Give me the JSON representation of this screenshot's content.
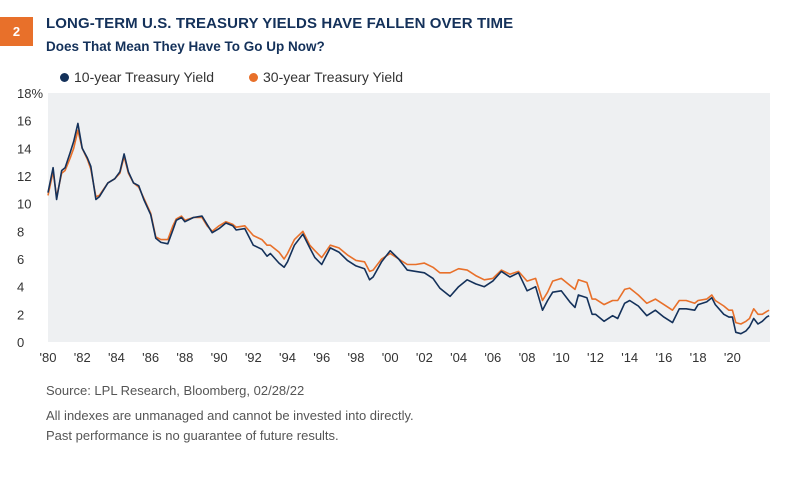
{
  "badge": "2",
  "title": "LONG-TERM U.S. TREASURY YIELDS HAVE FALLEN OVER TIME",
  "subtitle": "Does That Mean They Have To Go Up Now?",
  "footer": {
    "source": "Source: LPL Research, Bloomberg,  02/28/22",
    "disclaimer1": "All indexes are unmanaged and cannot be invested into directly.",
    "disclaimer2": "Past performance is no guarantee of future results."
  },
  "colors": {
    "navy": "#14315A",
    "orange": "#E8702A",
    "plot_bg": "#EEF0F2",
    "badge": "#E8702A"
  },
  "chart_data": {
    "type": "line",
    "title": "LONG-TERM U.S. TREASURY YIELDS HAVE FALLEN OVER TIME",
    "subtitle": "Does That Mean They Have To Go Up Now?",
    "xlabel": "",
    "ylabel": "",
    "xlim": [
      1980,
      2022.2
    ],
    "ylim": [
      0,
      18
    ],
    "y_ticks": [
      0,
      2,
      4,
      6,
      8,
      10,
      12,
      14,
      16,
      18
    ],
    "y_tick_labels": [
      "0",
      "2",
      "4",
      "6",
      "8",
      "10",
      "12",
      "14",
      "16",
      "18%"
    ],
    "x_ticks": [
      1980,
      1982,
      1984,
      1986,
      1988,
      1990,
      1992,
      1994,
      1996,
      1998,
      2000,
      2002,
      2004,
      2006,
      2008,
      2010,
      2012,
      2014,
      2016,
      2018,
      2020
    ],
    "x_tick_labels": [
      "'80",
      "'82",
      "'84",
      "'86",
      "'88",
      "'90",
      "'92",
      "'94",
      "'96",
      "'98",
      "'00",
      "'02",
      "'04",
      "'06",
      "'08",
      "'10",
      "'12",
      "'14",
      "'16",
      "'18",
      "'20"
    ],
    "grid": false,
    "legend_position": "top-left",
    "series": [
      {
        "name": "10-year Treasury Yield",
        "color": "#14315A",
        "x": [
          1980.0,
          1980.3,
          1980.5,
          1980.8,
          1981.0,
          1981.3,
          1981.5,
          1981.75,
          1982.0,
          1982.3,
          1982.5,
          1982.8,
          1983.0,
          1983.5,
          1983.9,
          1984.2,
          1984.45,
          1984.7,
          1985.0,
          1985.3,
          1985.6,
          1986.0,
          1986.3,
          1986.6,
          1987.0,
          1987.3,
          1987.5,
          1987.8,
          1988.0,
          1988.5,
          1989.0,
          1989.3,
          1989.6,
          1990.0,
          1990.4,
          1990.8,
          1991.0,
          1991.5,
          1992.0,
          1992.5,
          1992.8,
          1993.0,
          1993.5,
          1993.8,
          1994.0,
          1994.4,
          1994.9,
          1995.3,
          1995.6,
          1996.0,
          1996.5,
          1997.0,
          1997.5,
          1998.0,
          1998.5,
          1998.8,
          1999.0,
          1999.5,
          2000.0,
          2000.5,
          2001.0,
          2001.5,
          2002.0,
          2002.5,
          2002.9,
          2003.5,
          2004.0,
          2004.5,
          2005.0,
          2005.5,
          2006.0,
          2006.5,
          2007.0,
          2007.5,
          2008.0,
          2008.5,
          2008.9,
          2009.2,
          2009.5,
          2010.0,
          2010.5,
          2010.8,
          2011.0,
          2011.5,
          2011.8,
          2012.0,
          2012.5,
          2013.0,
          2013.3,
          2013.7,
          2014.0,
          2014.5,
          2015.0,
          2015.5,
          2016.0,
          2016.5,
          2016.9,
          2017.3,
          2017.8,
          2018.0,
          2018.5,
          2018.8,
          2019.0,
          2019.5,
          2019.8,
          2020.0,
          2020.2,
          2020.5,
          2020.8,
          2021.0,
          2021.25,
          2021.5,
          2021.75,
          2022.0,
          2022.15
        ],
        "values": [
          10.8,
          12.6,
          10.3,
          12.4,
          12.6,
          13.7,
          14.5,
          15.8,
          14.0,
          13.3,
          12.7,
          10.3,
          10.5,
          11.5,
          11.8,
          12.3,
          13.6,
          12.3,
          11.5,
          11.3,
          10.3,
          9.2,
          7.5,
          7.2,
          7.1,
          8.1,
          8.8,
          9.0,
          8.7,
          9.0,
          9.1,
          8.5,
          7.9,
          8.2,
          8.6,
          8.4,
          8.1,
          8.2,
          7.0,
          6.7,
          6.2,
          6.4,
          5.7,
          5.4,
          5.8,
          7.0,
          7.8,
          6.8,
          6.1,
          5.6,
          6.8,
          6.5,
          5.9,
          5.5,
          5.3,
          4.5,
          4.7,
          5.8,
          6.6,
          6.0,
          5.2,
          5.1,
          5.0,
          4.6,
          3.9,
          3.3,
          4.0,
          4.5,
          4.2,
          4.0,
          4.4,
          5.1,
          4.7,
          5.0,
          3.7,
          4.0,
          2.3,
          3.0,
          3.6,
          3.7,
          2.9,
          2.5,
          3.4,
          3.2,
          2.0,
          2.0,
          1.5,
          1.9,
          1.7,
          2.8,
          3.0,
          2.6,
          1.9,
          2.3,
          1.8,
          1.4,
          2.4,
          2.4,
          2.3,
          2.7,
          2.9,
          3.2,
          2.7,
          2.0,
          1.8,
          1.8,
          0.7,
          0.6,
          0.8,
          1.1,
          1.7,
          1.3,
          1.5,
          1.8,
          1.9
        ]
      },
      {
        "name": "30-year Treasury Yield",
        "color": "#E8702A",
        "x": [
          1980.0,
          1980.3,
          1980.5,
          1980.8,
          1981.0,
          1981.3,
          1981.5,
          1981.75,
          1982.0,
          1982.3,
          1982.5,
          1982.8,
          1983.0,
          1983.5,
          1983.9,
          1984.2,
          1984.45,
          1984.7,
          1985.0,
          1985.3,
          1985.6,
          1986.0,
          1986.3,
          1986.6,
          1987.0,
          1987.3,
          1987.5,
          1987.8,
          1988.0,
          1988.5,
          1989.0,
          1989.3,
          1989.6,
          1990.0,
          1990.4,
          1990.8,
          1991.0,
          1991.5,
          1992.0,
          1992.5,
          1992.8,
          1993.0,
          1993.5,
          1993.8,
          1994.0,
          1994.4,
          1994.9,
          1995.3,
          1995.6,
          1996.0,
          1996.5,
          1997.0,
          1997.5,
          1998.0,
          1998.5,
          1998.8,
          1999.0,
          1999.5,
          2000.0,
          2000.5,
          2001.0,
          2001.5,
          2002.0,
          2002.5,
          2002.9,
          2003.5,
          2004.0,
          2004.5,
          2005.0,
          2005.5,
          2006.0,
          2006.5,
          2007.0,
          2007.5,
          2008.0,
          2008.5,
          2008.9,
          2009.2,
          2009.5,
          2010.0,
          2010.5,
          2010.8,
          2011.0,
          2011.5,
          2011.8,
          2012.0,
          2012.5,
          2013.0,
          2013.3,
          2013.7,
          2014.0,
          2014.5,
          2015.0,
          2015.5,
          2016.0,
          2016.5,
          2016.9,
          2017.3,
          2017.8,
          2018.0,
          2018.5,
          2018.8,
          2019.0,
          2019.5,
          2019.8,
          2020.0,
          2020.2,
          2020.5,
          2020.8,
          2021.0,
          2021.25,
          2021.5,
          2021.75,
          2022.0,
          2022.15
        ],
        "values": [
          10.6,
          12.3,
          10.5,
          12.2,
          12.4,
          13.3,
          14.0,
          15.3,
          14.0,
          13.2,
          12.5,
          10.5,
          10.6,
          11.5,
          11.8,
          12.2,
          13.4,
          12.2,
          11.5,
          11.2,
          10.4,
          9.3,
          7.6,
          7.4,
          7.4,
          8.4,
          8.9,
          9.1,
          8.8,
          9.0,
          9.0,
          8.4,
          8.0,
          8.4,
          8.7,
          8.5,
          8.3,
          8.4,
          7.7,
          7.4,
          7.0,
          7.0,
          6.5,
          6.0,
          6.4,
          7.4,
          8.0,
          7.0,
          6.6,
          6.1,
          7.0,
          6.8,
          6.3,
          5.9,
          5.8,
          5.1,
          5.2,
          6.0,
          6.4,
          6.0,
          5.6,
          5.6,
          5.7,
          5.4,
          5.0,
          5.0,
          5.3,
          5.2,
          4.8,
          4.5,
          4.6,
          5.2,
          4.9,
          5.1,
          4.4,
          4.6,
          3.0,
          3.6,
          4.4,
          4.6,
          4.1,
          3.8,
          4.5,
          4.3,
          3.1,
          3.1,
          2.7,
          3.0,
          3.0,
          3.8,
          3.9,
          3.4,
          2.8,
          3.1,
          2.7,
          2.3,
          3.0,
          3.0,
          2.8,
          3.0,
          3.1,
          3.4,
          3.0,
          2.6,
          2.3,
          2.3,
          1.4,
          1.3,
          1.5,
          1.7,
          2.4,
          2.0,
          2.0,
          2.2,
          2.3
        ]
      }
    ]
  }
}
